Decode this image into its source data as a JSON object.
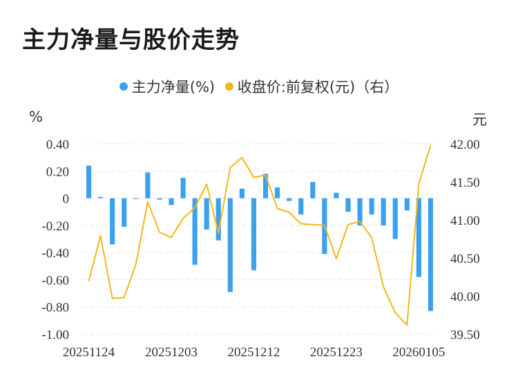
{
  "title": "主力净量与股价走势",
  "legend": {
    "series1": "主力净量(%)",
    "series2": "收盘价:前复权(元)（右）"
  },
  "colors": {
    "bar": "#3ba0ee",
    "line": "#f2b817",
    "grid": "#e6e6e6",
    "text": "#333333"
  },
  "chart_data": {
    "type": "bar+line",
    "title": "主力净量与股价走势",
    "left_axis": {
      "label": "%",
      "ylim": [
        -1.0,
        0.4
      ],
      "ticks": [
        "0.40",
        "0.20",
        "0",
        "-0.20",
        "-0.40",
        "-0.60",
        "-0.80",
        "-1.00"
      ]
    },
    "right_axis": {
      "label": "元",
      "ylim": [
        39.5,
        42.0
      ],
      "ticks": [
        "42.00",
        "41.50",
        "41.00",
        "40.50",
        "40.00",
        "39.50"
      ]
    },
    "x_tick_labels": [
      "20251124",
      "20251203",
      "20251212",
      "20251223",
      "20260105"
    ],
    "x_tick_index": [
      0,
      7,
      14,
      21,
      28
    ],
    "series": [
      {
        "name": "主力净量(%)",
        "type": "bar",
        "axis": "left",
        "values": [
          0.24,
          0.01,
          -0.34,
          -0.21,
          -0.005,
          0.19,
          -0.01,
          -0.05,
          0.15,
          -0.49,
          -0.23,
          -0.31,
          -0.69,
          0.07,
          -0.53,
          0.18,
          0.08,
          -0.02,
          -0.12,
          0.12,
          -0.41,
          0.04,
          -0.1,
          -0.2,
          -0.12,
          -0.2,
          -0.3,
          -0.09,
          -0.58,
          -0.83
        ]
      },
      {
        "name": "收盘价:前复权(元)（右）",
        "type": "line",
        "axis": "right",
        "values": [
          40.2,
          40.79,
          39.97,
          39.98,
          40.42,
          41.24,
          40.84,
          40.77,
          41.02,
          41.16,
          41.47,
          40.83,
          41.69,
          41.82,
          41.56,
          41.59,
          41.15,
          41.1,
          40.95,
          40.94,
          40.93,
          40.49,
          40.94,
          40.98,
          40.77,
          40.12,
          39.78,
          39.62,
          41.48,
          41.98
        ]
      }
    ]
  }
}
